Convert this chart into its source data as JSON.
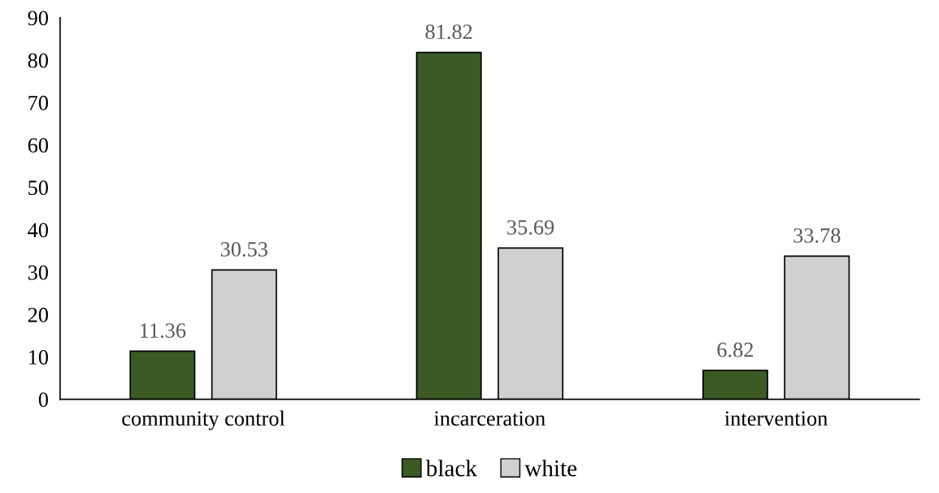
{
  "chart_data": {
    "type": "bar",
    "categories": [
      "community control",
      "incarceration",
      "intervention"
    ],
    "series": [
      {
        "name": "black",
        "color": "#3b5a24",
        "values": [
          11.36,
          81.82,
          6.82
        ]
      },
      {
        "name": "white",
        "color": "#d0cfd1",
        "values": [
          30.53,
          35.69,
          33.78
        ]
      }
    ],
    "ylim": [
      0,
      90
    ],
    "yticks": [
      0,
      10,
      20,
      30,
      40,
      50,
      60,
      70,
      80,
      90
    ],
    "data_labels": true,
    "grid": false,
    "legend": "bottom"
  }
}
